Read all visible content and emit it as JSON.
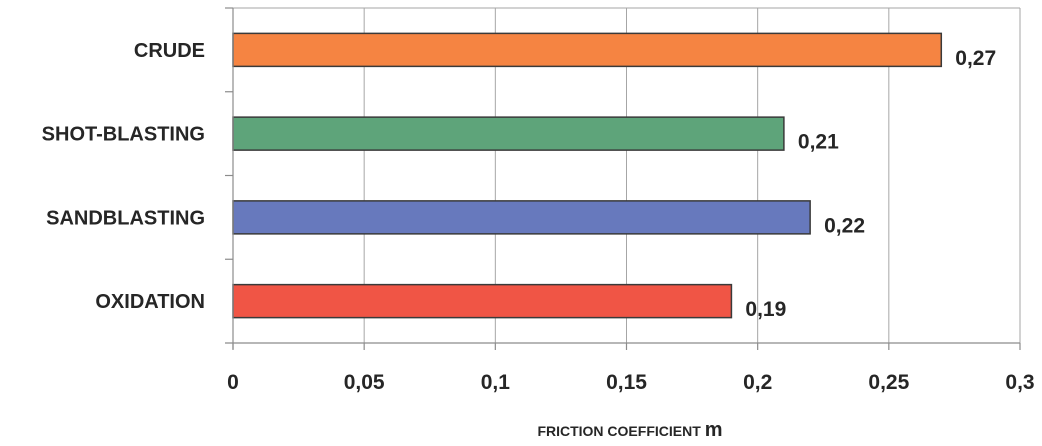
{
  "chart_data": {
    "type": "bar",
    "orientation": "horizontal",
    "categories": [
      "CRUDE",
      "SHOT-BLASTING",
      "SANDBLASTING",
      "OXIDATION"
    ],
    "values": [
      0.27,
      0.21,
      0.22,
      0.19
    ],
    "data_labels": [
      "0,27",
      "0,21",
      "0,22",
      "0,19"
    ],
    "colors": [
      "#f58442",
      "#5ea47a",
      "#6779bd",
      "#f05545"
    ],
    "xlim": [
      0,
      0.3
    ],
    "x_ticks": [
      0,
      0.05,
      0.1,
      0.15,
      0.2,
      0.25,
      0.3
    ],
    "x_tick_labels": [
      "0",
      "0,05",
      "0,1",
      "0,15",
      "0,2",
      "0,25",
      "0,3"
    ],
    "xlabel": "FRICTION COEFFICIENT",
    "xlabel_symbol": "m",
    "title": "",
    "grid": true,
    "grid_axis": "x",
    "legend": false
  }
}
